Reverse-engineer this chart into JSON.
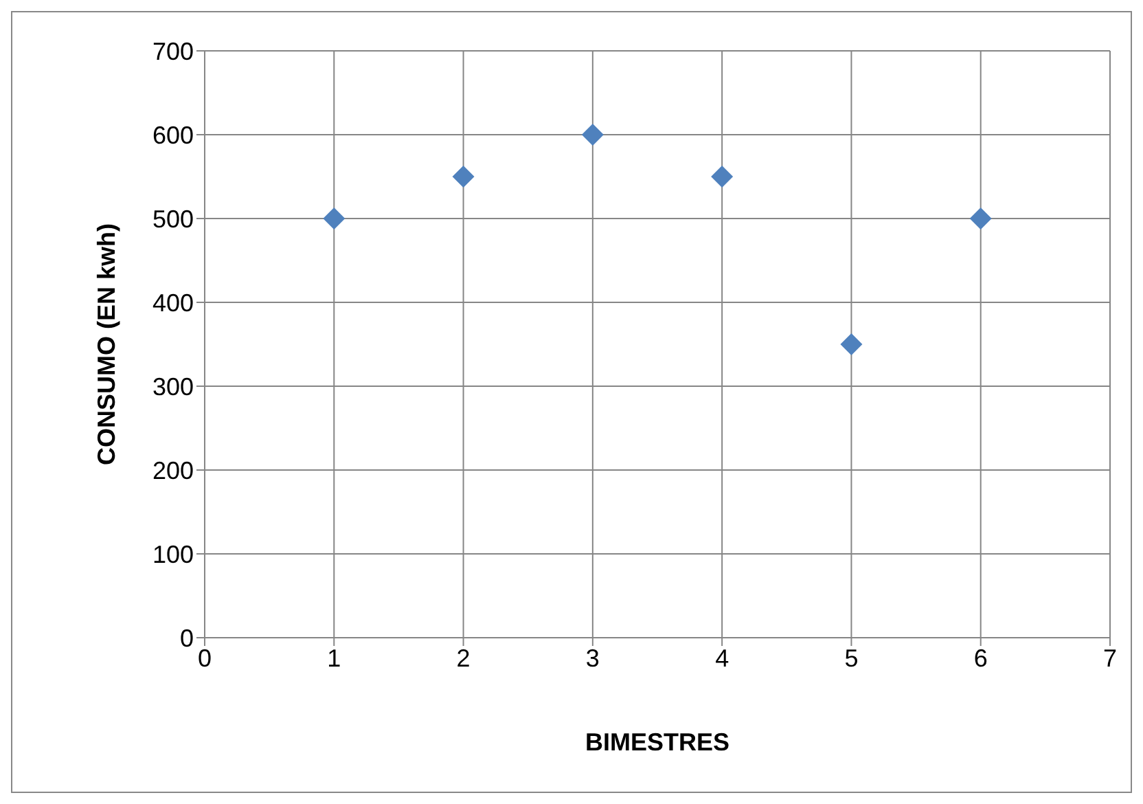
{
  "chart_data": {
    "type": "scatter",
    "xlabel": "BIMESTRES",
    "ylabel": "CONSUMO (EN kwh)",
    "x": [
      1,
      2,
      3,
      4,
      5,
      6
    ],
    "series": [
      {
        "color": "#4f81bd",
        "values": [
          500,
          550,
          600,
          550,
          350,
          500
        ]
      }
    ],
    "xlim": [
      0,
      7
    ],
    "xticks": [
      0,
      1,
      2,
      3,
      4,
      5,
      6,
      7
    ],
    "ylim": [
      0,
      700
    ],
    "yticks": [
      0,
      100,
      200,
      300,
      400,
      500,
      600,
      700
    ],
    "grid": true,
    "marker": "diamond"
  }
}
